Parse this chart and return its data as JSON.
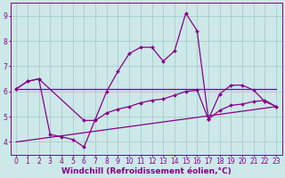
{
  "background_color": "#cce8e8",
  "grid_color": "#aacccc",
  "line_color": "#880088",
  "xlim": [
    -0.5,
    23.5
  ],
  "ylim": [
    3.5,
    9.5
  ],
  "yticks": [
    4,
    5,
    6,
    7,
    8,
    9
  ],
  "xticks": [
    0,
    1,
    2,
    3,
    4,
    5,
    6,
    7,
    8,
    9,
    10,
    11,
    12,
    13,
    14,
    15,
    16,
    17,
    18,
    19,
    20,
    21,
    22,
    23
  ],
  "xlabel": "Windchill (Refroidissement éolien,°C)",
  "xlabel_fontsize": 6.5,
  "tick_fontsize": 5.5,
  "line1_x": [
    0,
    1,
    2,
    3,
    4,
    5,
    6,
    7,
    8,
    9,
    10,
    11,
    12,
    13,
    14,
    15,
    16,
    17,
    18,
    19,
    20,
    21,
    22,
    23
  ],
  "line1_y": [
    6.1,
    6.4,
    6.5,
    4.3,
    4.2,
    4.1,
    3.8,
    4.9,
    6.0,
    6.8,
    7.5,
    7.75,
    7.75,
    7.2,
    7.6,
    9.1,
    8.4,
    4.9,
    5.9,
    6.25,
    6.25,
    6.05,
    5.6,
    5.4
  ],
  "line2_x": [
    0,
    1,
    2,
    6,
    7,
    8,
    9,
    10,
    11,
    12,
    13,
    14,
    15,
    16,
    17,
    18,
    19,
    20,
    21,
    22,
    23
  ],
  "line2_y": [
    6.1,
    6.4,
    6.5,
    4.85,
    4.85,
    5.15,
    5.3,
    5.4,
    5.55,
    5.65,
    5.7,
    5.85,
    6.0,
    6.05,
    4.9,
    5.25,
    5.45,
    5.5,
    5.6,
    5.65,
    5.4
  ],
  "line3_x": [
    0,
    23
  ],
  "line3_y": [
    4.0,
    5.4
  ],
  "line4_x": [
    0,
    23
  ],
  "line4_y": [
    6.1,
    6.1
  ]
}
